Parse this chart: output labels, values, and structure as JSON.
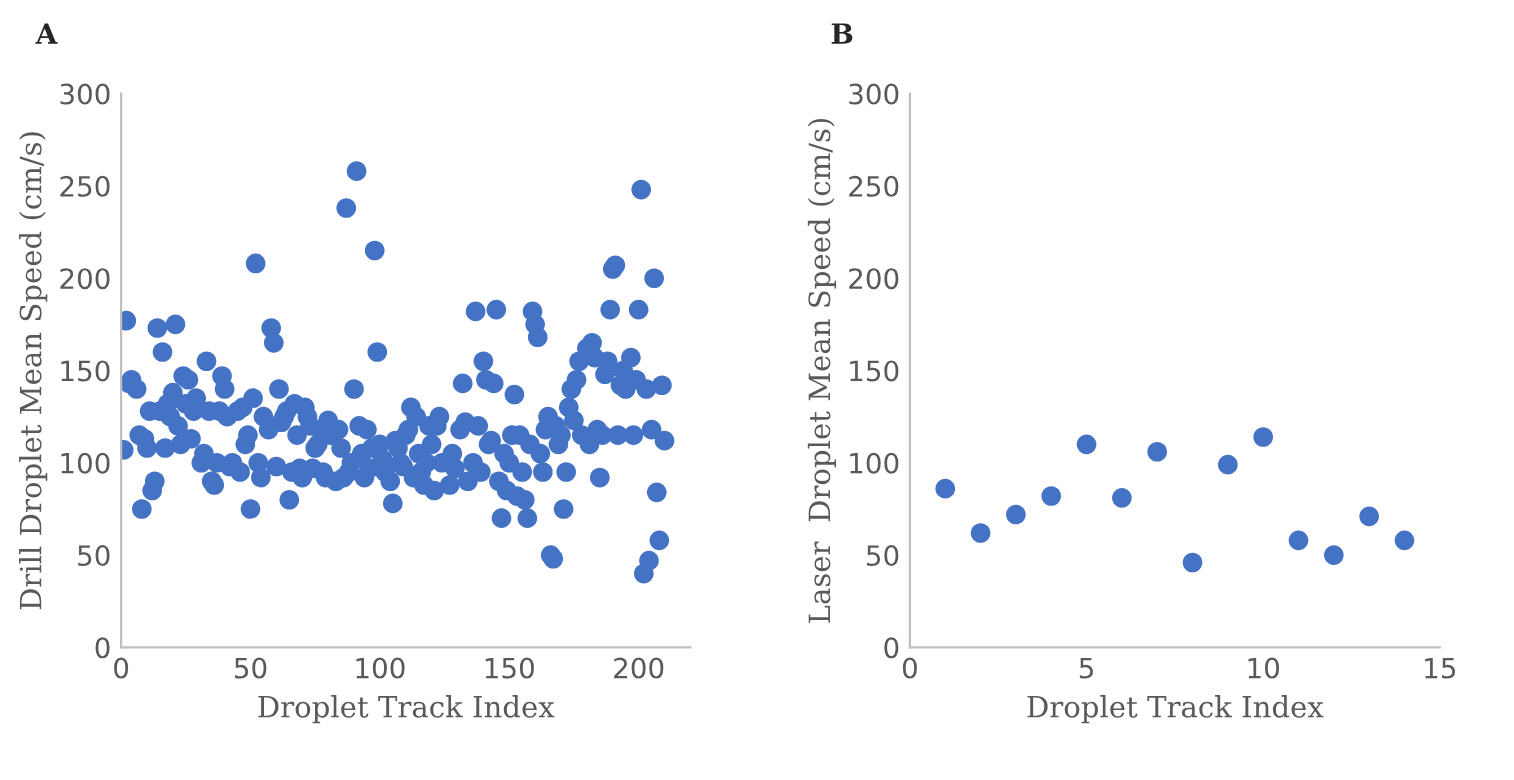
{
  "chart_data": [
    {
      "type": "scatter",
      "title": "A",
      "xlabel": "Droplet Track Index",
      "ylabel": "Drill Droplet Mean Speed (cm/s)",
      "xlim": [
        0,
        220
      ],
      "xticks": [
        0,
        50,
        100,
        150,
        200
      ],
      "ylim": [
        0,
        300
      ],
      "yticks": [
        0,
        50,
        100,
        150,
        200,
        250,
        300
      ],
      "grid": false,
      "legend": false,
      "marker": "circle",
      "series": [
        {
          "color": "#4472c4",
          "x": [
            1,
            2,
            3,
            4,
            5,
            6,
            7,
            8,
            9,
            10,
            11,
            12,
            13,
            14,
            15,
            16,
            17,
            18,
            19,
            20,
            21,
            22,
            23,
            24,
            25,
            26,
            27,
            28,
            29,
            30,
            31,
            32,
            33,
            34,
            35,
            36,
            37,
            38,
            39,
            40,
            41,
            42,
            43,
            44,
            45,
            46,
            47,
            48,
            49,
            50,
            51,
            52,
            53,
            54,
            55,
            56,
            57,
            58,
            59,
            60,
            61,
            62,
            63,
            64,
            65,
            66,
            67,
            68,
            69,
            70,
            71,
            72,
            73,
            74,
            75,
            76,
            77,
            78,
            79,
            80,
            81,
            82,
            83,
            84,
            85,
            86,
            87,
            88,
            89,
            90,
            91,
            92,
            93,
            94,
            95,
            96,
            97,
            98,
            99,
            100,
            101,
            102,
            103,
            104,
            105,
            106,
            107,
            108,
            109,
            110,
            111,
            112,
            113,
            114,
            115,
            116,
            117,
            118,
            119,
            120,
            121,
            122,
            123,
            124,
            125,
            126,
            127,
            128,
            129,
            130,
            131,
            132,
            133,
            134,
            135,
            136,
            137,
            138,
            139,
            140,
            141,
            142,
            143,
            144,
            145,
            146,
            147,
            148,
            149,
            150,
            151,
            152,
            153,
            154,
            155,
            156,
            157,
            158,
            159,
            160,
            161,
            162,
            163,
            164,
            165,
            166,
            167,
            168,
            169,
            170,
            171,
            172,
            173,
            174,
            175,
            176,
            177,
            178,
            179,
            180,
            181,
            182,
            183,
            184,
            185,
            186,
            187,
            188,
            189,
            190,
            191,
            192,
            193,
            194,
            195,
            196,
            197,
            198,
            199,
            200,
            201,
            202,
            203,
            204,
            205,
            206,
            207,
            208,
            209,
            210
          ],
          "values": [
            107,
            177,
            143,
            145,
            null,
            140,
            115,
            75,
            113,
            108,
            128,
            85,
            90,
            173,
            128,
            160,
            108,
            132,
            125,
            138,
            175,
            120,
            110,
            147,
            132,
            145,
            113,
            128,
            135,
            null,
            100,
            105,
            155,
            128,
            90,
            88,
            100,
            128,
            147,
            140,
            125,
            98,
            100,
            null,
            128,
            95,
            130,
            110,
            115,
            75,
            135,
            208,
            100,
            92,
            125,
            null,
            118,
            173,
            165,
            98,
            140,
            122,
            125,
            128,
            80,
            95,
            132,
            115,
            97,
            92,
            130,
            125,
            120,
            97,
            108,
            110,
            118,
            95,
            92,
            123,
            115,
            null,
            90,
            118,
            108,
            92,
            238,
            95,
            100,
            140,
            258,
            120,
            105,
            92,
            118,
            97,
            108,
            215,
            160,
            110,
            102,
            95,
            null,
            90,
            78,
            112,
            108,
            100,
            98,
            115,
            118,
            130,
            92,
            125,
            105,
            95,
            88,
            100,
            120,
            110,
            85,
            120,
            125,
            100,
            null,
            null,
            88,
            105,
            97,
            null,
            118,
            143,
            122,
            90,
            null,
            100,
            182,
            120,
            95,
            155,
            145,
            110,
            112,
            143,
            183,
            90,
            70,
            105,
            85,
            100,
            115,
            137,
            82,
            115,
            95,
            80,
            70,
            110,
            182,
            175,
            168,
            105,
            95,
            118,
            125,
            50,
            48,
            120,
            110,
            115,
            75,
            95,
            130,
            140,
            123,
            145,
            155,
            115,
            null,
            162,
            110,
            165,
            157,
            118,
            92,
            115,
            148,
            155,
            183,
            205,
            207,
            115,
            142,
            150,
            140,
            null,
            157,
            115,
            145,
            183,
            248,
            40,
            140,
            47,
            118,
            200,
            84,
            58,
            142,
            112
          ]
        }
      ]
    },
    {
      "type": "scatter",
      "title": "B",
      "xlabel": "Droplet Track Index",
      "ylabel": "Laser  Droplet Mean Speed (cm/s)",
      "xlim": [
        0,
        15
      ],
      "xticks": [
        0,
        5,
        10,
        15
      ],
      "ylim": [
        0,
        300
      ],
      "yticks": [
        0,
        50,
        100,
        150,
        200,
        250,
        300
      ],
      "grid": false,
      "legend": false,
      "marker": "circle",
      "series": [
        {
          "color": "#4472c4",
          "x": [
            1,
            2,
            3,
            4,
            5,
            6,
            7,
            8,
            9,
            10,
            11,
            12,
            13,
            14
          ],
          "values": [
            86,
            62,
            72,
            82,
            110,
            81,
            106,
            46,
            99,
            114,
            58,
            50,
            71,
            58
          ]
        }
      ]
    }
  ]
}
